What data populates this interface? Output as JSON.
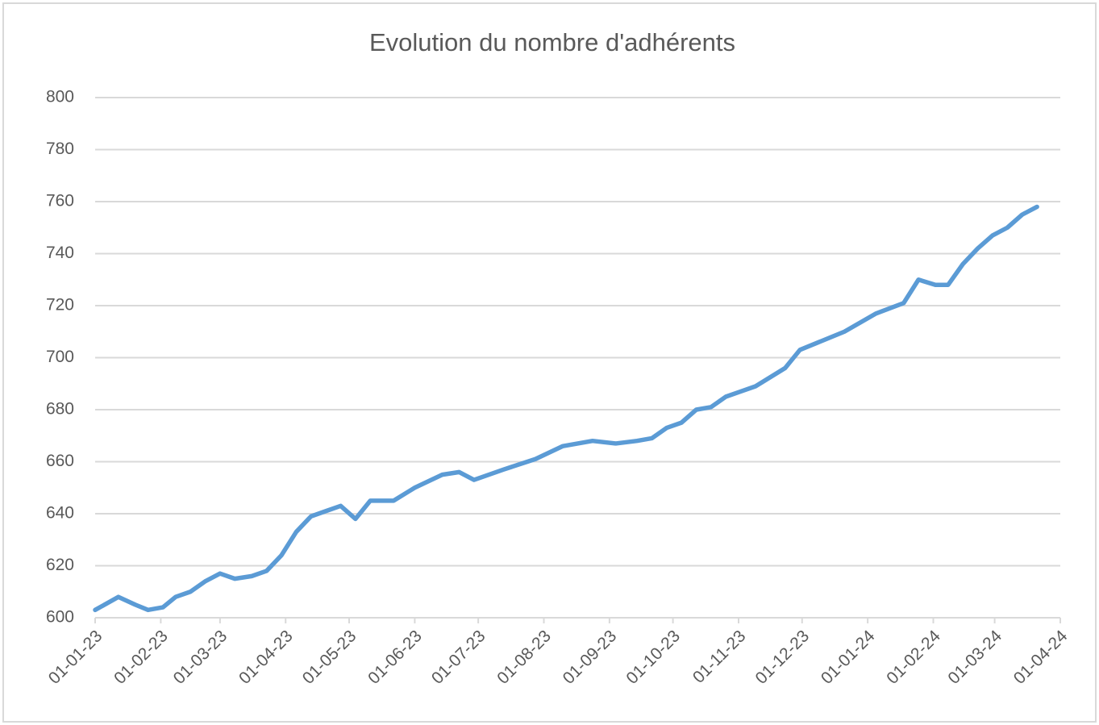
{
  "chart_data": {
    "type": "line",
    "title": "Evolution du nombre d'adhérents",
    "x": [
      "2023-01-01",
      "2023-01-12",
      "2023-01-20",
      "2023-01-26",
      "2023-02-02",
      "2023-02-08",
      "2023-02-15",
      "2023-02-22",
      "2023-03-01",
      "2023-03-08",
      "2023-03-16",
      "2023-03-23",
      "2023-03-30",
      "2023-04-06",
      "2023-04-13",
      "2023-04-20",
      "2023-04-27",
      "2023-05-04",
      "2023-05-11",
      "2023-05-22",
      "2023-06-01",
      "2023-06-14",
      "2023-06-22",
      "2023-06-29",
      "2023-07-13",
      "2023-07-28",
      "2023-08-10",
      "2023-08-24",
      "2023-09-04",
      "2023-09-14",
      "2023-09-21",
      "2023-09-28",
      "2023-10-05",
      "2023-10-12",
      "2023-10-19",
      "2023-10-26",
      "2023-11-02",
      "2023-11-09",
      "2023-11-23",
      "2023-11-30",
      "2023-12-21",
      "2024-01-05",
      "2024-01-18",
      "2024-01-25",
      "2024-02-02",
      "2024-02-08",
      "2024-02-15",
      "2024-02-22",
      "2024-02-29",
      "2024-03-07",
      "2024-03-14",
      "2024-03-21"
    ],
    "series": [
      {
        "name": "Adhérents",
        "color": "#5b9bd5",
        "values": [
          603,
          608,
          605,
          603,
          604,
          608,
          610,
          614,
          617,
          615,
          616,
          618,
          624,
          633,
          639,
          641,
          643,
          638,
          645,
          645,
          650,
          655,
          656,
          653,
          657,
          661,
          666,
          668,
          667,
          668,
          669,
          673,
          675,
          680,
          681,
          685,
          687,
          689,
          696,
          703,
          710,
          717,
          721,
          730,
          728,
          728,
          736,
          742,
          747,
          750,
          755,
          758
        ]
      }
    ],
    "xlim": [
      "2023-01-01",
      "2024-04-01"
    ],
    "xticks": [
      {
        "value": "2023-01-01",
        "label": "01-01-23"
      },
      {
        "value": "2023-02-01",
        "label": "01-02-23"
      },
      {
        "value": "2023-03-01",
        "label": "01-03-23"
      },
      {
        "value": "2023-04-01",
        "label": "01-04-23"
      },
      {
        "value": "2023-05-01",
        "label": "01-05-23"
      },
      {
        "value": "2023-06-01",
        "label": "01-06-23"
      },
      {
        "value": "2023-07-01",
        "label": "01-07-23"
      },
      {
        "value": "2023-08-01",
        "label": "01-08-23"
      },
      {
        "value": "2023-09-01",
        "label": "01-09-23"
      },
      {
        "value": "2023-10-01",
        "label": "01-10-23"
      },
      {
        "value": "2023-11-01",
        "label": "01-11-23"
      },
      {
        "value": "2023-12-01",
        "label": "01-12-23"
      },
      {
        "value": "2024-01-01",
        "label": "01-01-24"
      },
      {
        "value": "2024-02-01",
        "label": "01-02-24"
      },
      {
        "value": "2024-03-01",
        "label": "01-03-24"
      },
      {
        "value": "2024-04-01",
        "label": "01-04-24"
      }
    ],
    "ylim": [
      600,
      800
    ],
    "yticks": [
      600,
      620,
      640,
      660,
      680,
      700,
      720,
      740,
      760,
      780,
      800
    ],
    "grid": true
  }
}
